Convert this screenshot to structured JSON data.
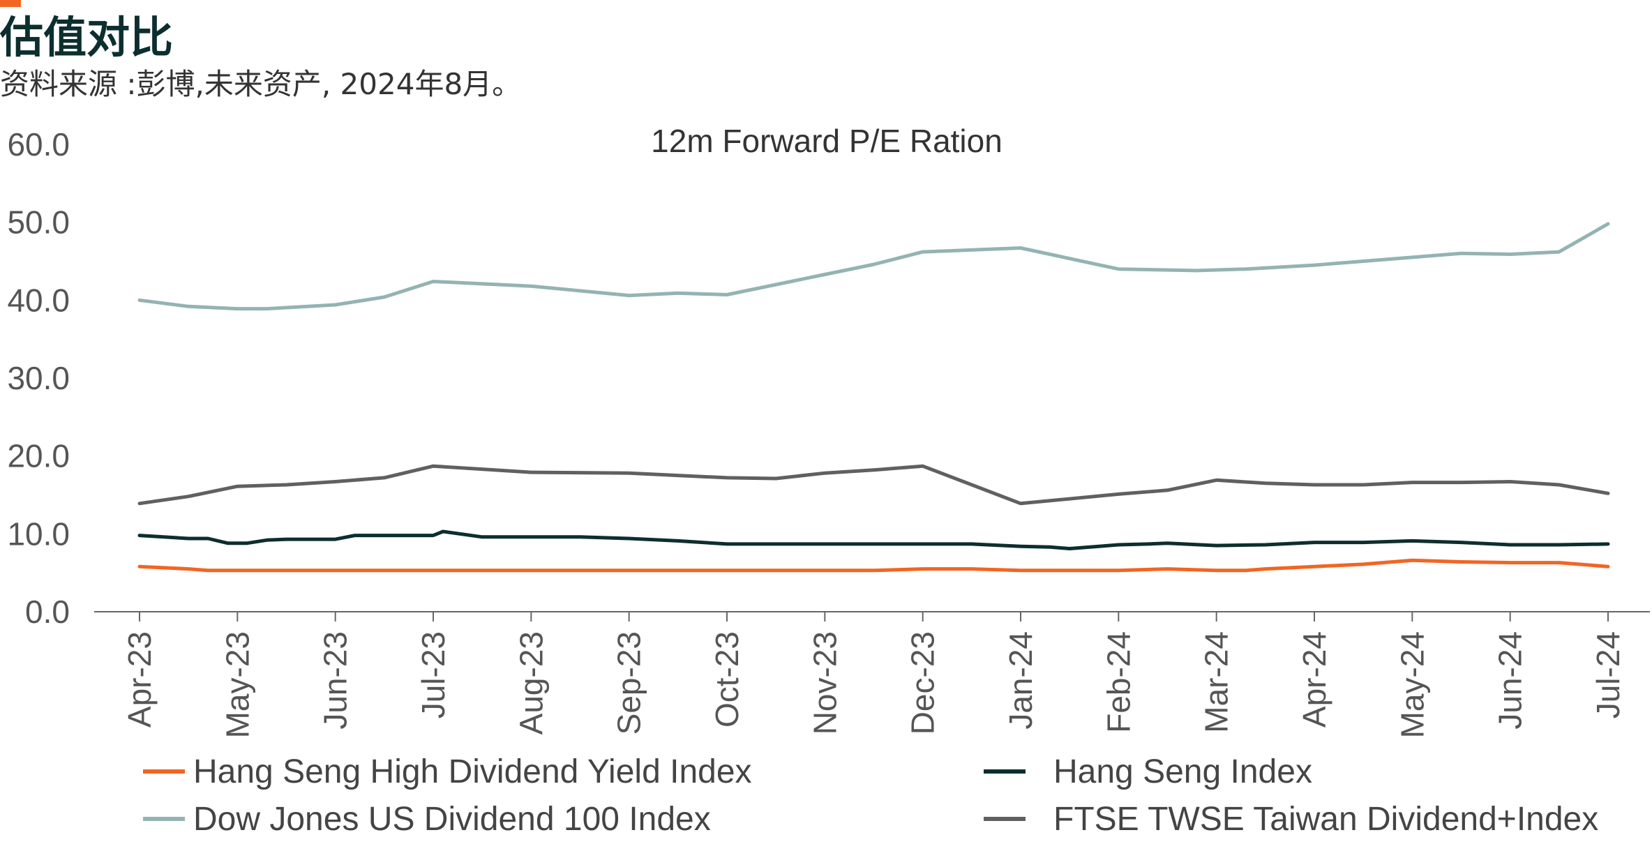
{
  "header": {
    "title": "估值对比",
    "subtitle": "资料来源 :彭博,未来资产, 2024年8月。"
  },
  "colors": {
    "accent": "#f26522",
    "hshdy": "#f26522",
    "hsi": "#0d2e2e",
    "dowjones": "#94b3b3",
    "ftse": "#606060",
    "axis": "#555555"
  },
  "chart_data": {
    "type": "line",
    "title": "12m Forward P/E Ration",
    "xlabel": "",
    "ylabel": "",
    "ylim": [
      0,
      60
    ],
    "yticks": [
      "0.0",
      "10.0",
      "20.0",
      "30.0",
      "40.0",
      "50.0",
      "60.0"
    ],
    "xticks": [
      "Apr-23",
      "May-23",
      "Jun-23",
      "Jul-23",
      "Aug-23",
      "Sep-23",
      "Oct-23",
      "Nov-23",
      "Dec-23",
      "Jan-24",
      "Feb-24",
      "Mar-24",
      "Apr-24",
      "May-24",
      "Jun-24",
      "Jul-24"
    ],
    "grid": false,
    "legend_position": "bottom",
    "series": [
      {
        "name": "Hang Seng High Dividend Yield Index",
        "color_key": "hshdy",
        "points": [
          [
            0,
            5.8
          ],
          [
            0.5,
            5.5
          ],
          [
            0.7,
            5.3
          ],
          [
            1,
            5.3
          ],
          [
            2,
            5.3
          ],
          [
            3,
            5.3
          ],
          [
            4,
            5.3
          ],
          [
            5,
            5.3
          ],
          [
            6,
            5.3
          ],
          [
            7,
            5.3
          ],
          [
            7.5,
            5.3
          ],
          [
            8,
            5.5
          ],
          [
            8.5,
            5.5
          ],
          [
            9,
            5.3
          ],
          [
            10,
            5.3
          ],
          [
            10.5,
            5.5
          ],
          [
            11,
            5.3
          ],
          [
            11.3,
            5.3
          ],
          [
            11.5,
            5.5
          ],
          [
            12,
            5.8
          ],
          [
            12.5,
            6.1
          ],
          [
            13,
            6.6
          ],
          [
            13.5,
            6.4
          ],
          [
            14,
            6.3
          ],
          [
            14.5,
            6.3
          ],
          [
            15,
            5.8
          ]
        ]
      },
      {
        "name": "Hang Seng Index",
        "color_key": "hsi",
        "points": [
          [
            0,
            9.8
          ],
          [
            0.5,
            9.4
          ],
          [
            0.7,
            9.4
          ],
          [
            0.9,
            8.8
          ],
          [
            1.1,
            8.8
          ],
          [
            1.3,
            9.2
          ],
          [
            1.5,
            9.3
          ],
          [
            2,
            9.3
          ],
          [
            2.2,
            9.8
          ],
          [
            3,
            9.8
          ],
          [
            3.1,
            10.3
          ],
          [
            3.5,
            9.6
          ],
          [
            4,
            9.6
          ],
          [
            4.5,
            9.6
          ],
          [
            5,
            9.4
          ],
          [
            5.5,
            9.1
          ],
          [
            6,
            8.7
          ],
          [
            7,
            8.7
          ],
          [
            8,
            8.7
          ],
          [
            8.5,
            8.7
          ],
          [
            9,
            8.4
          ],
          [
            9.3,
            8.3
          ],
          [
            9.5,
            8.1
          ],
          [
            9.8,
            8.4
          ],
          [
            10,
            8.6
          ],
          [
            10.3,
            8.7
          ],
          [
            10.5,
            8.8
          ],
          [
            11,
            8.5
          ],
          [
            11.5,
            8.6
          ],
          [
            12,
            8.9
          ],
          [
            12.5,
            8.9
          ],
          [
            13,
            9.1
          ],
          [
            13.5,
            8.9
          ],
          [
            14,
            8.6
          ],
          [
            14.5,
            8.6
          ],
          [
            15,
            8.7
          ]
        ]
      },
      {
        "name": "Dow Jones US Dividend 100 Index",
        "color_key": "dowjones",
        "points": [
          [
            0,
            40.0
          ],
          [
            0.5,
            39.2
          ],
          [
            1,
            38.9
          ],
          [
            1.3,
            38.9
          ],
          [
            2,
            39.4
          ],
          [
            2.5,
            40.4
          ],
          [
            3,
            42.4
          ],
          [
            4,
            41.8
          ],
          [
            5,
            40.6
          ],
          [
            5.5,
            40.9
          ],
          [
            6,
            40.7
          ],
          [
            7,
            43.3
          ],
          [
            7.5,
            44.6
          ],
          [
            8,
            46.2
          ],
          [
            9,
            46.7
          ],
          [
            10,
            44.0
          ],
          [
            10.8,
            43.8
          ],
          [
            11.3,
            44.0
          ],
          [
            12,
            44.5
          ],
          [
            12.5,
            45.0
          ],
          [
            13,
            45.5
          ],
          [
            13.5,
            46.0
          ],
          [
            14,
            45.9
          ],
          [
            14.5,
            46.2
          ],
          [
            15,
            49.8
          ]
        ]
      },
      {
        "name": "FTSE TWSE Taiwan Dividend+Index",
        "color_key": "ftse",
        "points": [
          [
            0,
            13.9
          ],
          [
            0.5,
            14.8
          ],
          [
            1,
            16.1
          ],
          [
            1.5,
            16.3
          ],
          [
            2,
            16.7
          ],
          [
            2.5,
            17.2
          ],
          [
            3,
            18.7
          ],
          [
            3.5,
            18.3
          ],
          [
            4,
            17.9
          ],
          [
            5,
            17.8
          ],
          [
            5.5,
            17.5
          ],
          [
            6,
            17.2
          ],
          [
            6.5,
            17.1
          ],
          [
            7,
            17.8
          ],
          [
            7.5,
            18.2
          ],
          [
            8,
            18.7
          ],
          [
            9,
            13.9
          ],
          [
            10,
            15.1
          ],
          [
            10.5,
            15.6
          ],
          [
            11,
            16.9
          ],
          [
            11.5,
            16.5
          ],
          [
            12,
            16.3
          ],
          [
            12.5,
            16.3
          ],
          [
            13,
            16.6
          ],
          [
            13.5,
            16.6
          ],
          [
            14,
            16.7
          ],
          [
            14.5,
            16.3
          ],
          [
            15,
            15.2
          ]
        ]
      }
    ]
  }
}
